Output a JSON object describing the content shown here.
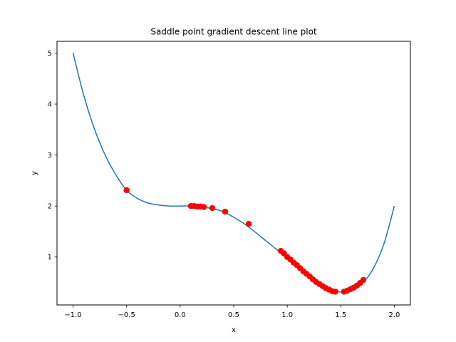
{
  "chart_data": {
    "type": "line",
    "title": "Saddle point gradient descent line plot",
    "xlabel": "x",
    "ylabel": "y",
    "xlim": [
      -1.15,
      2.15
    ],
    "ylim": [
      0.06,
      5.23
    ],
    "xticks": [
      -1.0,
      -0.5,
      0.0,
      0.5,
      1.0,
      1.5,
      2.0
    ],
    "xtick_labels": [
      "−1.0",
      "−0.5",
      "0.0",
      "0.5",
      "1.0",
      "1.5",
      "2.0"
    ],
    "yticks": [
      1,
      2,
      3,
      4,
      5
    ],
    "ytick_labels": [
      "1",
      "2",
      "3",
      "4",
      "5"
    ],
    "grid": false,
    "line": {
      "color": "#1f77b4",
      "x": [
        -1.0,
        -0.9,
        -0.8,
        -0.7,
        -0.6,
        -0.5,
        -0.4,
        -0.3,
        -0.2,
        -0.1,
        0.0,
        0.1,
        0.2,
        0.3,
        0.4,
        0.5,
        0.6,
        0.7,
        0.8,
        0.9,
        1.0,
        1.1,
        1.2,
        1.3,
        1.4,
        1.5,
        1.6,
        1.7,
        1.8,
        1.9,
        2.0
      ],
      "y": [
        5.0,
        4.17,
        3.51,
        3.0,
        2.61,
        2.31,
        2.15,
        2.06,
        2.02,
        2.0,
        2.0,
        2.0,
        1.98,
        1.95,
        1.89,
        1.78,
        1.65,
        1.49,
        1.32,
        1.15,
        1.0,
        0.82,
        0.65,
        0.5,
        0.38,
        0.31,
        0.33,
        0.48,
        0.76,
        1.24,
        2.0
      ]
    },
    "points": {
      "color": "#ff0000",
      "x": [
        -0.5,
        0.1,
        0.13,
        0.16,
        0.19,
        0.22,
        0.3,
        0.42,
        0.64,
        0.94,
        0.97,
        1.0,
        1.03,
        1.06,
        1.09,
        1.12,
        1.15,
        1.18,
        1.21,
        1.24,
        1.27,
        1.3,
        1.33,
        1.36,
        1.39,
        1.42,
        1.45,
        1.53,
        1.56,
        1.59,
        1.62,
        1.65,
        1.68,
        1.71
      ],
      "y": [
        2.31,
        2.0,
        2.0,
        1.99,
        1.99,
        1.98,
        1.96,
        1.89,
        1.65,
        1.12,
        1.07,
        1.0,
        0.95,
        0.89,
        0.84,
        0.78,
        0.72,
        0.67,
        0.62,
        0.56,
        0.51,
        0.47,
        0.43,
        0.39,
        0.36,
        0.33,
        0.32,
        0.32,
        0.34,
        0.37,
        0.4,
        0.44,
        0.49,
        0.55
      ]
    }
  }
}
